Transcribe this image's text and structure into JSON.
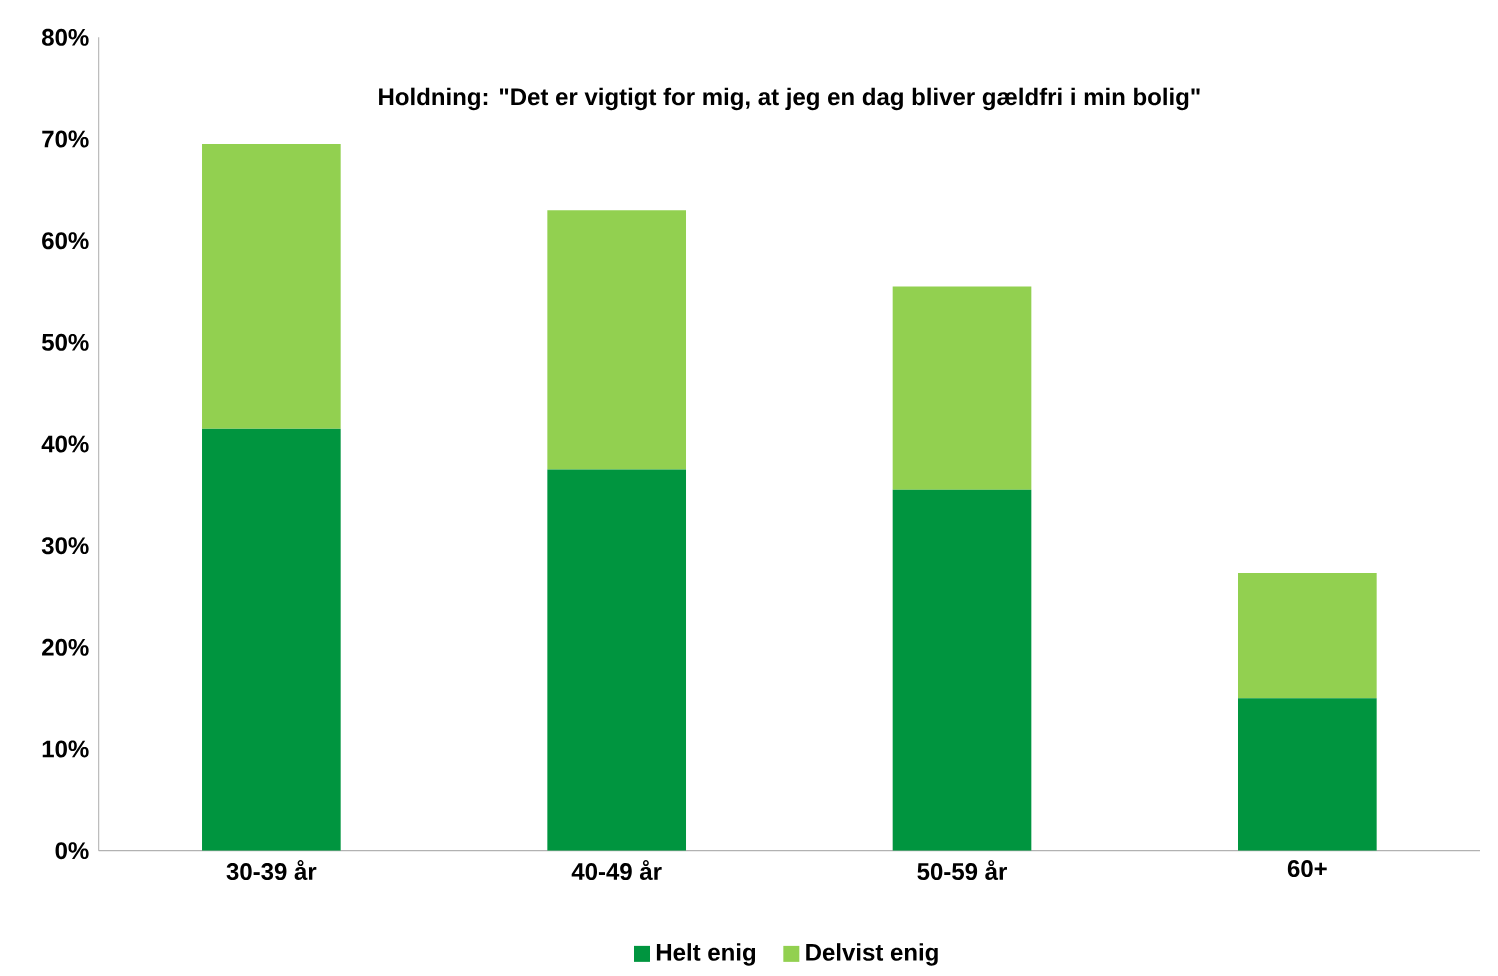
{
  "chart_data": {
    "type": "bar",
    "stacked": true,
    "title": "Holdning: \"Det er vigtigt for mig, at jeg en dag bliver gældfri i min bolig\"",
    "categories": [
      "30-39 år",
      "40-49 år",
      "50-59 år",
      "60+"
    ],
    "series": [
      {
        "name": "Helt enig",
        "color": "#00953f",
        "values": [
          41.5,
          37.5,
          35.5,
          15
        ]
      },
      {
        "name": "Delvist enig",
        "color": "#92d050",
        "values": [
          28,
          25.5,
          20,
          12.3
        ]
      }
    ],
    "ylim": [
      0,
      80
    ],
    "yticks": [
      {
        "value": 0,
        "label": "0%"
      },
      {
        "value": 10,
        "label": "10%"
      },
      {
        "value": 20,
        "label": "20%"
      },
      {
        "value": 30,
        "label": "30%"
      },
      {
        "value": 40,
        "label": "40%"
      },
      {
        "value": 50,
        "label": "50%"
      },
      {
        "value": 60,
        "label": "60%"
      },
      {
        "value": 70,
        "label": "70%"
      },
      {
        "value": 80,
        "label": "80%"
      }
    ],
    "legend": "bottom"
  }
}
